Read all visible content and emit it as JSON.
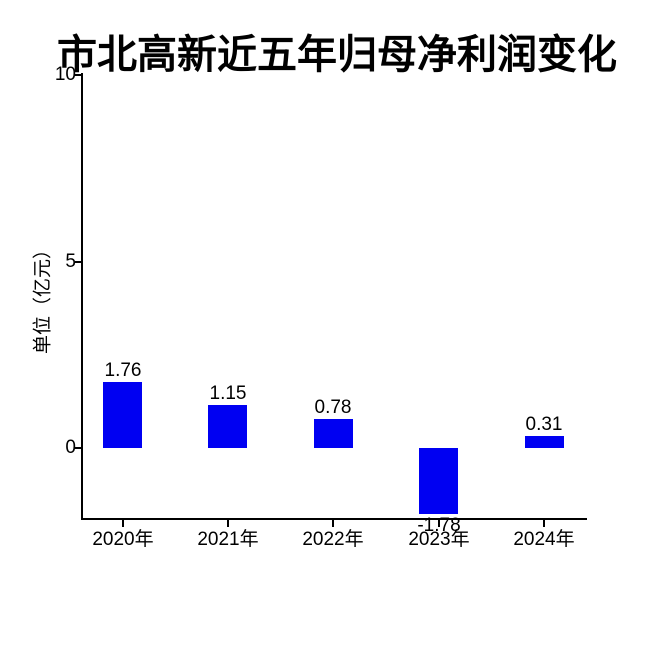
{
  "chart_data": {
    "type": "bar",
    "title": "市北高新近五年归母净利润变化",
    "ylabel": "单位（亿元）",
    "xlabel": "",
    "categories": [
      "2020年",
      "2021年",
      "2022年",
      "2023年",
      "2024年"
    ],
    "values": [
      1.76,
      1.15,
      0.78,
      -1.78,
      0.31
    ],
    "value_labels": [
      "1.76",
      "1.15",
      "0.78",
      "-1.78",
      "0.31"
    ],
    "yticks": [
      0,
      5,
      10
    ],
    "ytick_labels": [
      "0",
      "5",
      "10"
    ],
    "ylim": [
      -1.9,
      10.1
    ],
    "grid": false,
    "legend": "none",
    "bar_color": "#0000F2",
    "axis_color": "#000000",
    "text_color": "#000000",
    "background_color": "#FFFFFF"
  }
}
